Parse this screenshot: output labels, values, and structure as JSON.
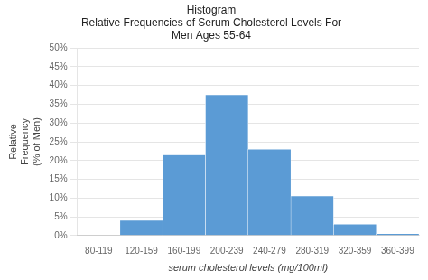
{
  "chart_data": {
    "type": "bar",
    "title": [
      "Histogram",
      "Relative Frequencies of Serum Cholesterol Levels For",
      "Men Ages 55-64"
    ],
    "xlabel": "serum cholesterol levels (mg/100ml)",
    "ylabel": [
      "Relative",
      "Frequency",
      "(% of Men)"
    ],
    "categories": [
      "80-119",
      "120-159",
      "160-199",
      "200-239",
      "240-279",
      "280-319",
      "320-359",
      "360-399"
    ],
    "values": [
      0.0,
      4.0,
      21.5,
      37.5,
      23.0,
      10.5,
      3.0,
      0.5
    ],
    "color": "#5b9bd5",
    "ylim": [
      0,
      50
    ],
    "yticks": [
      {
        "value": 0,
        "label": "0%"
      },
      {
        "value": 5,
        "label": "5%"
      },
      {
        "value": 10,
        "label": "10%"
      },
      {
        "value": 15,
        "label": "15%"
      },
      {
        "value": 20,
        "label": "20%"
      },
      {
        "value": 25,
        "label": "25%"
      },
      {
        "value": 30,
        "label": "30%"
      },
      {
        "value": 35,
        "label": "35%"
      },
      {
        "value": 40,
        "label": "40%"
      },
      {
        "value": 45,
        "label": "45%"
      },
      {
        "value": 50,
        "label": "50%"
      }
    ],
    "grid": "y"
  }
}
